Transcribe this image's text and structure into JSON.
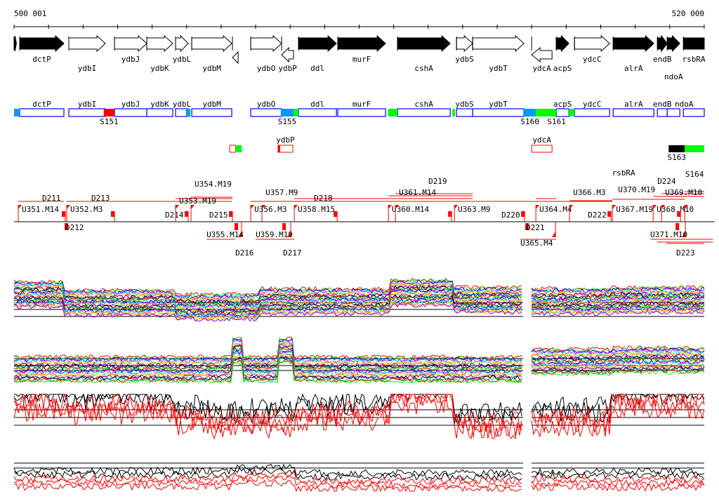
{
  "ruler": {
    "start_label": "500 001",
    "end_label": "520 000",
    "start": 500001,
    "end": 520000
  },
  "genes": [
    {
      "name": "",
      "start": 500001,
      "end": 500070,
      "filled": true,
      "strand": "+"
    },
    {
      "name": "dctP",
      "start": 500164,
      "end": 501446,
      "filled": true,
      "strand": "+"
    },
    {
      "name": "ydbI",
      "start": 501588,
      "end": 502647,
      "filled": false,
      "strand": "+"
    },
    {
      "name": "ydbJ",
      "start": 502911,
      "end": 503847,
      "filled": false,
      "strand": "+"
    },
    {
      "name": "ydbK",
      "start": 503847,
      "end": 504600,
      "filled": false,
      "strand": "+"
    },
    {
      "name": "ydbL",
      "start": 504681,
      "end": 505048,
      "filled": false,
      "strand": "+"
    },
    {
      "name": "ydbM",
      "start": 505150,
      "end": 506310,
      "filled": false,
      "strand": "+"
    },
    {
      "name": "",
      "start": 506330,
      "end": 506493,
      "filled": false,
      "strand": "-"
    },
    {
      "name": "ydbO",
      "start": 506859,
      "end": 507754,
      "filled": false,
      "strand": "+"
    },
    {
      "name": "ydbP",
      "start": 507754,
      "end": 508100,
      "filled": false,
      "strand": "-"
    },
    {
      "name": "ddl",
      "start": 508243,
      "end": 509342,
      "filled": true,
      "strand": "+"
    },
    {
      "name": "murF",
      "start": 509382,
      "end": 510766,
      "filled": true,
      "strand": "+"
    },
    {
      "name": "cshA",
      "start": 511112,
      "end": 512638,
      "filled": true,
      "strand": "+"
    },
    {
      "name": "ydbS",
      "start": 512822,
      "end": 513290,
      "filled": false,
      "strand": "+"
    },
    {
      "name": "ydbT",
      "start": 513290,
      "end": 514775,
      "filled": false,
      "strand": "+"
    },
    {
      "name": "ydcA",
      "start": 514999,
      "end": 515589,
      "filled": false,
      "strand": "-"
    },
    {
      "name": "acpS",
      "start": 515711,
      "end": 516077,
      "filled": true,
      "strand": "+"
    },
    {
      "name": "ydcC",
      "start": 516240,
      "end": 517258,
      "filled": false,
      "strand": "+"
    },
    {
      "name": "alrA",
      "start": 517360,
      "end": 518540,
      "filled": true,
      "strand": "+"
    },
    {
      "name": "endB",
      "start": 518642,
      "end": 518927,
      "filled": true,
      "strand": "+"
    },
    {
      "name": "ndoA",
      "start": 518927,
      "end": 519293,
      "filled": true,
      "strand": "+"
    },
    {
      "name": "rsbRA",
      "start": 519395,
      "end": 520000,
      "filled": true,
      "strand": "+"
    }
  ],
  "segments_plus": [
    {
      "label": "",
      "start": 500001,
      "end": 500140,
      "color": "#0099ff"
    },
    {
      "label": "S151",
      "start": 502600,
      "end": 502911,
      "color": "#ff0000"
    },
    {
      "label": "",
      "start": 504980,
      "end": 505110,
      "color": "#0099ff"
    },
    {
      "label": "S155",
      "start": 507730,
      "end": 508100,
      "color": "#0099ff"
    },
    {
      "label": "",
      "start": 508100,
      "end": 508243,
      "color": "#00ff00"
    },
    {
      "label": "",
      "start": 510840,
      "end": 511112,
      "color": "#00ff00"
    },
    {
      "label": "",
      "start": 512700,
      "end": 512780,
      "color": "#00ff00"
    },
    {
      "label": "S160",
      "start": 514775,
      "end": 515121,
      "color": "#0099ff"
    },
    {
      "label": "S161",
      "start": 515121,
      "end": 515711,
      "color": "#00ff00"
    },
    {
      "label": "",
      "start": 516077,
      "end": 516240,
      "color": "#00ff00"
    }
  ],
  "segments_minus": [
    {
      "label": "",
      "name": "",
      "start": 506250,
      "end": 506420,
      "box": true,
      "fill": "#ffffff"
    },
    {
      "label": "",
      "name": "",
      "start": 506420,
      "end": 506600,
      "box": false,
      "fill": "#00ff00"
    },
    {
      "label": "",
      "name": "ydbP",
      "start": 507650,
      "end": 508080,
      "box": true,
      "fill": "#ffffff"
    },
    {
      "label": "",
      "name": "ydcA",
      "start": 514999,
      "end": 515589,
      "box": true,
      "fill": "#ffffff"
    },
    {
      "label": "S163",
      "start": 518968,
      "end": 519435,
      "box": false,
      "fill": "#000000"
    },
    {
      "label": "S164",
      "start": 519435,
      "end": 520000,
      "box": false,
      "fill": "#00ff00"
    }
  ],
  "units": [
    {
      "label": "U351.M14",
      "pos": 500123,
      "side": "up"
    },
    {
      "label": "D211",
      "pos": 500815,
      "side": "up2"
    },
    {
      "label": "D212",
      "pos": 501487,
      "side": "down"
    },
    {
      "label": "U352.M3",
      "pos": 501527,
      "side": "up"
    },
    {
      "label": "D213",
      "pos": 502240,
      "side": "up2"
    },
    {
      "label": "D214",
      "pos": 504376,
      "side": "up2"
    },
    {
      "label": "U353.M19",
      "pos": 504682,
      "side": "up"
    },
    {
      "label": "U354.M19",
      "pos": 505129,
      "side": "up"
    },
    {
      "label": "D215",
      "pos": 505658,
      "side": "up2"
    },
    {
      "label": "U355.M14",
      "pos": 505577,
      "side": "down2"
    },
    {
      "label": "D216",
      "pos": 506411,
      "side": "down"
    },
    {
      "label": "U356.M3",
      "pos": 506859,
      "side": "up"
    },
    {
      "label": "U357.M9",
      "pos": 507185,
      "side": "up"
    },
    {
      "label": "U359.M19",
      "pos": 507001,
      "side": "down2"
    },
    {
      "label": "D217",
      "pos": 507795,
      "side": "down"
    },
    {
      "label": "U358.M15",
      "pos": 508121,
      "side": "up"
    },
    {
      "label": "D218",
      "pos": 508691,
      "side": "up2"
    },
    {
      "label": "U360.M14",
      "pos": 510848,
      "side": "up"
    },
    {
      "label": "U361.M14",
      "pos": 511052,
      "side": "up"
    },
    {
      "label": "D219",
      "pos": 512008,
      "side": "up2"
    },
    {
      "label": "U363.M9",
      "pos": 512761,
      "side": "up"
    },
    {
      "label": "D220",
      "pos": 514124,
      "side": "up2"
    },
    {
      "label": "D221",
      "pos": 514836,
      "side": "down"
    },
    {
      "label": "U365.M4",
      "pos": 514673,
      "side": "down2"
    },
    {
      "label": "U364.M4",
      "pos": 515121,
      "side": "up"
    },
    {
      "label": "U366.M3",
      "pos": 516098,
      "side": "up"
    },
    {
      "label": "D222",
      "pos": 516627,
      "side": "up2"
    },
    {
      "label": "U367.M19",
      "pos": 517339,
      "side": "up"
    },
    {
      "label": "U368.M10",
      "pos": 518519,
      "side": "up"
    },
    {
      "label": "U369.M10",
      "pos": 518763,
      "side": "up"
    },
    {
      "label": "D224",
      "pos": 518641,
      "side": "up2"
    },
    {
      "label": "U370.M19",
      "pos": 519435,
      "side": "up"
    },
    {
      "label": "U371.M10",
      "pos": 518437,
      "side": "down2"
    },
    {
      "label": "D223",
      "pos": 519190,
      "side": "down"
    }
  ],
  "colors": {
    "box": "#0000ff",
    "unit": "#ff0000",
    "heat": [
      "#ff0000",
      "#00ff00",
      "#0000ff",
      "#ff00ff",
      "#00ffff",
      "#ffcc00",
      "#ff8800",
      "#8800ff",
      "#000000",
      "#00aa88"
    ]
  }
}
